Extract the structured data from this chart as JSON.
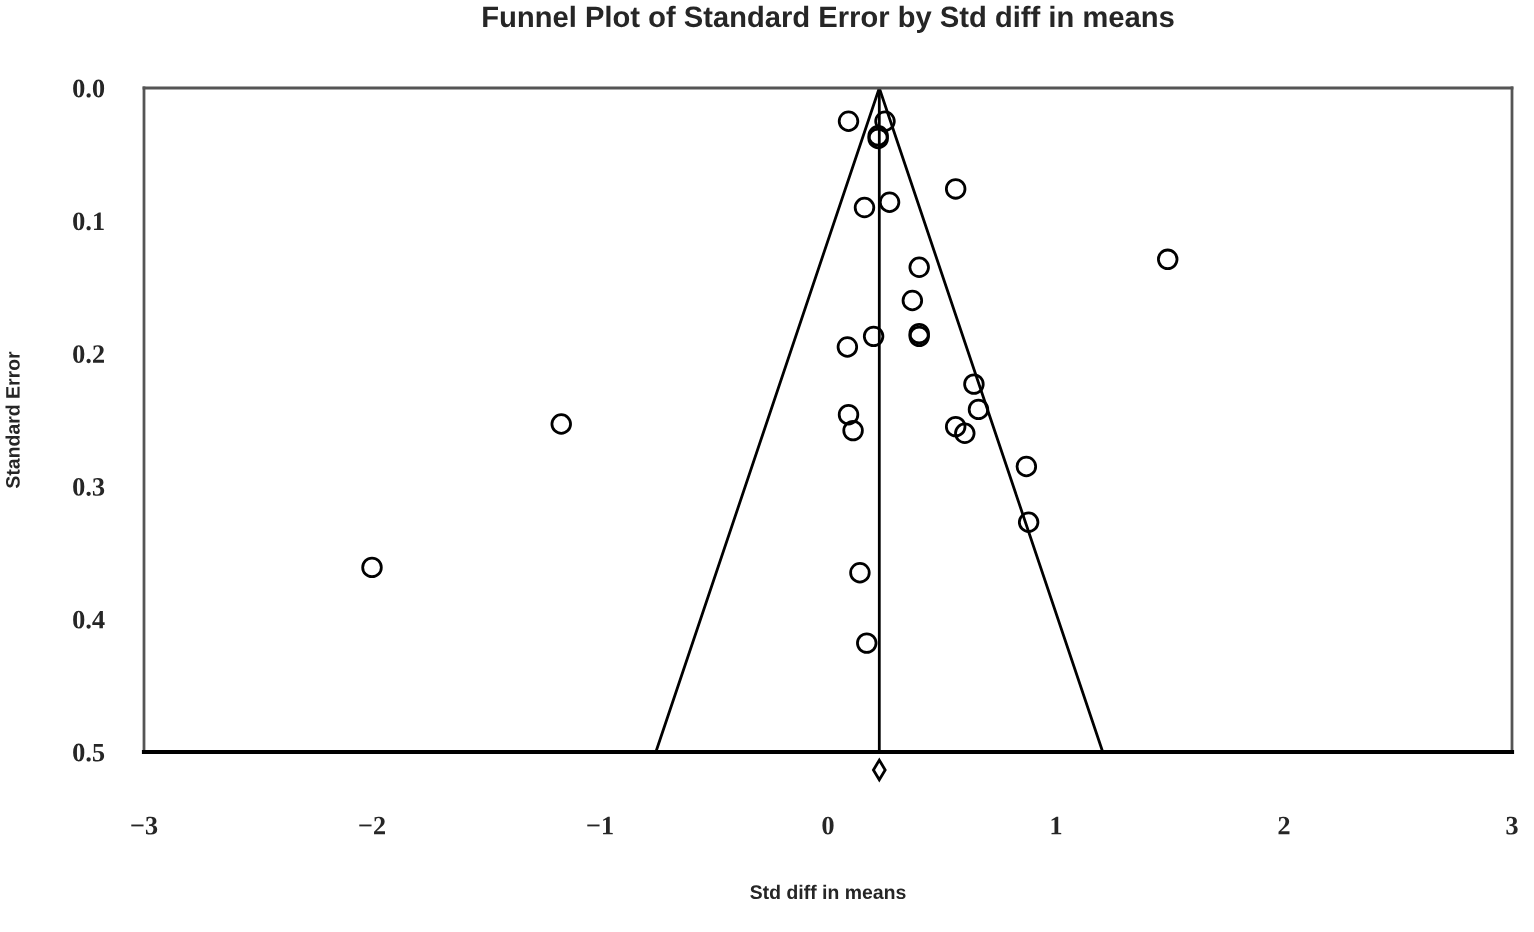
{
  "chart_data": {
    "type": "scatter",
    "title": "Funnel Plot of Standard Error by Std diff in means",
    "xlabel": "Std diff in means",
    "ylabel": "Standard Error",
    "series": [
      {
        "color": "#000000",
        "marker": "circle",
        "x": [
          0.09,
          0.25,
          0.22,
          0.22,
          0.56,
          0.16,
          0.27,
          1.49,
          0.4,
          0.37,
          0.4,
          0.4,
          0.2,
          0.085,
          0.64,
          0.66,
          0.09,
          0.11,
          0.56,
          0.6,
          -1.17,
          0.87,
          0.88,
          -2.0,
          0.14,
          0.17
        ],
        "values": [
          0.025,
          0.025,
          0.036,
          0.038,
          0.076,
          0.09,
          0.086,
          0.129,
          0.135,
          0.16,
          0.185,
          0.187,
          0.187,
          0.195,
          0.223,
          0.242,
          0.246,
          0.258,
          0.255,
          0.26,
          0.253,
          0.285,
          0.327,
          0.361,
          0.365,
          0.418
        ]
      },
      {
        "type": "line",
        "color": "#000000",
        "marker": "none",
        "x": [
          -0.755,
          0.225,
          1.205
        ],
        "values": [
          0.5,
          0.0,
          0.5
        ]
      }
    ],
    "ref_lines": [
      {
        "axis": "x",
        "value": 0.225,
        "color": "#000000"
      }
    ],
    "xlim": [
      -3,
      3
    ],
    "xticks": [
      {
        "value": -3,
        "label": "−3"
      },
      {
        "value": -2,
        "label": "−2"
      },
      {
        "value": -1,
        "label": "−1"
      },
      0,
      1,
      2,
      3
    ],
    "ylim": [
      0.5,
      0.0
    ],
    "yticks": [
      {
        "value": 0.0,
        "label": "0.0"
      },
      {
        "value": 0.1,
        "label": "0.1"
      },
      {
        "value": 0.2,
        "label": "0.2"
      },
      {
        "value": 0.3,
        "label": "0.3"
      },
      {
        "value": 0.4,
        "label": "0.4"
      },
      {
        "value": 0.5,
        "label": "0.5"
      }
    ],
    "grid": false,
    "legend": false
  }
}
